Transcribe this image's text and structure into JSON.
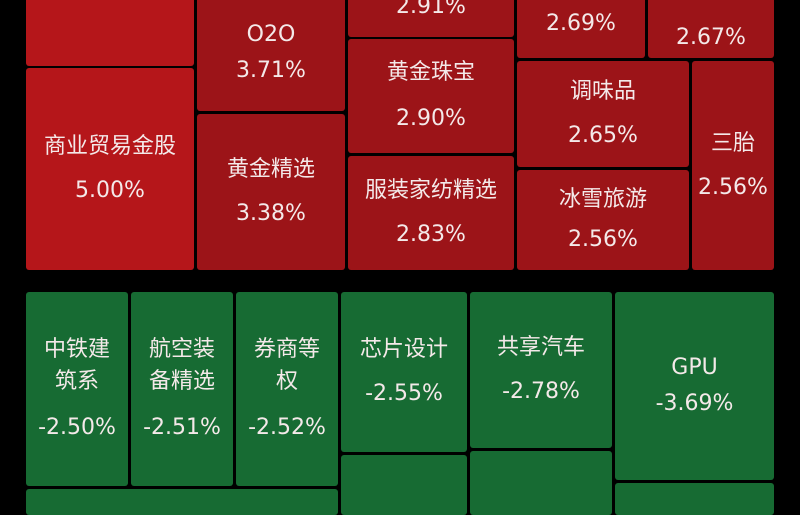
{
  "gainers": [
    {
      "name": "",
      "change": "2.91%"
    },
    {
      "name": "",
      "change": "2.69%"
    },
    {
      "name": "",
      "change": "2.67%"
    },
    {
      "name": "O2O",
      "change": "3.71%"
    },
    {
      "name": "黄金珠宝",
      "change": "2.90%"
    },
    {
      "name": "调味品",
      "change": "2.65%"
    },
    {
      "name": "商业贸易金股",
      "change": "5.00%"
    },
    {
      "name": "黄金精选",
      "change": "3.38%"
    },
    {
      "name": "服装家纺精选",
      "change": "2.83%"
    },
    {
      "name": "冰雪旅游",
      "change": "2.56%"
    },
    {
      "name": "三胎",
      "change": "2.56%"
    }
  ],
  "losers": [
    {
      "name_line1": "中铁建",
      "name_line2": "筑系",
      "change": "-2.50%"
    },
    {
      "name_line1": "航空装",
      "name_line2": "备精选",
      "change": "-2.51%"
    },
    {
      "name_line1": "券商等",
      "name_line2": "权",
      "change": "-2.52%"
    },
    {
      "name": "芯片设计",
      "change": "-2.55%"
    },
    {
      "name": "共享汽车",
      "change": "-2.78%"
    },
    {
      "name": "GPU",
      "change": "-3.69%"
    }
  ],
  "colors": {
    "gain_strong": "#b5161a",
    "gain": "#9c1418",
    "loss": "#176b33"
  }
}
